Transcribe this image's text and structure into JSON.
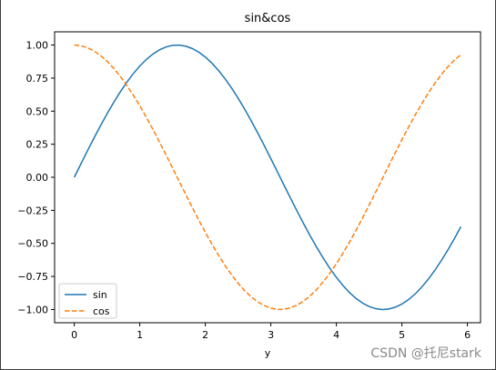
{
  "chart_data": {
    "type": "line",
    "title": "sin&cos",
    "xlabel": "y",
    "ylabel": "",
    "xlim": [
      -0.3,
      6.2
    ],
    "ylim": [
      -1.1,
      1.1
    ],
    "xticks": [
      "0",
      "1",
      "2",
      "3",
      "4",
      "5",
      "6"
    ],
    "yticks": [
      "1.00",
      "0.75",
      "0.50",
      "0.25",
      "0.00",
      "−0.25",
      "−0.50",
      "−0.75",
      "−1.00"
    ],
    "x": [
      0.0,
      0.1,
      0.2,
      0.3,
      0.4,
      0.5,
      0.6,
      0.7,
      0.8,
      0.9,
      1.0,
      1.1,
      1.2,
      1.3,
      1.4,
      1.5,
      1.6,
      1.7,
      1.8,
      1.9,
      2.0,
      2.1,
      2.2,
      2.3,
      2.4,
      2.5,
      2.6,
      2.7,
      2.8,
      2.9,
      3.0,
      3.1,
      3.2,
      3.3,
      3.4,
      3.5,
      3.6,
      3.7,
      3.8,
      3.9,
      4.0,
      4.1,
      4.2,
      4.3,
      4.4,
      4.5,
      4.6,
      4.7,
      4.8,
      4.9,
      5.0,
      5.1,
      5.2,
      5.3,
      5.4,
      5.5,
      5.6,
      5.7,
      5.8,
      5.9
    ],
    "series": [
      {
        "name": "sin",
        "color": "#1f77b4",
        "style": "solid",
        "values": [
          0.0,
          0.0998,
          0.1987,
          0.2955,
          0.3894,
          0.4794,
          0.5646,
          0.6442,
          0.7174,
          0.7833,
          0.8415,
          0.8912,
          0.932,
          0.9636,
          0.9854,
          0.9975,
          0.9996,
          0.9917,
          0.9738,
          0.9463,
          0.9093,
          0.8632,
          0.8085,
          0.7457,
          0.6755,
          0.5985,
          0.5155,
          0.4274,
          0.335,
          0.2392,
          0.1411,
          0.0416,
          -0.0584,
          -0.1577,
          -0.2555,
          -0.3508,
          -0.4425,
          -0.5298,
          -0.6119,
          -0.6878,
          -0.7568,
          -0.8183,
          -0.8716,
          -0.9162,
          -0.9516,
          -0.9775,
          -0.9937,
          -0.9999,
          -0.9962,
          -0.9825,
          -0.9589,
          -0.9258,
          -0.8835,
          -0.8323,
          -0.7728,
          -0.7055,
          -0.6313,
          -0.5507,
          -0.4646,
          -0.3739
        ]
      },
      {
        "name": "cos",
        "color": "#ff7f0e",
        "style": "dashed",
        "values": [
          1.0,
          0.995,
          0.9801,
          0.9553,
          0.9211,
          0.8776,
          0.8253,
          0.7648,
          0.6967,
          0.6216,
          0.5403,
          0.4536,
          0.3624,
          0.2675,
          0.17,
          0.0707,
          -0.0292,
          -0.1288,
          -0.2272,
          -0.3233,
          -0.4161,
          -0.5048,
          -0.5885,
          -0.6663,
          -0.7374,
          -0.8011,
          -0.8569,
          -0.9041,
          -0.9422,
          -0.971,
          -0.99,
          -0.9991,
          -0.9983,
          -0.9875,
          -0.9668,
          -0.9365,
          -0.8968,
          -0.8481,
          -0.791,
          -0.7259,
          -0.6536,
          -0.5748,
          -0.4903,
          -0.4008,
          -0.3073,
          -0.2108,
          -0.1122,
          -0.0124,
          0.0875,
          0.1865,
          0.2837,
          0.378,
          0.4685,
          0.5544,
          0.6347,
          0.7087,
          0.7756,
          0.8347,
          0.8855,
          0.9275
        ]
      }
    ],
    "legend": "lower-left",
    "grid": false
  },
  "watermark": "CSDN @托尼stark"
}
